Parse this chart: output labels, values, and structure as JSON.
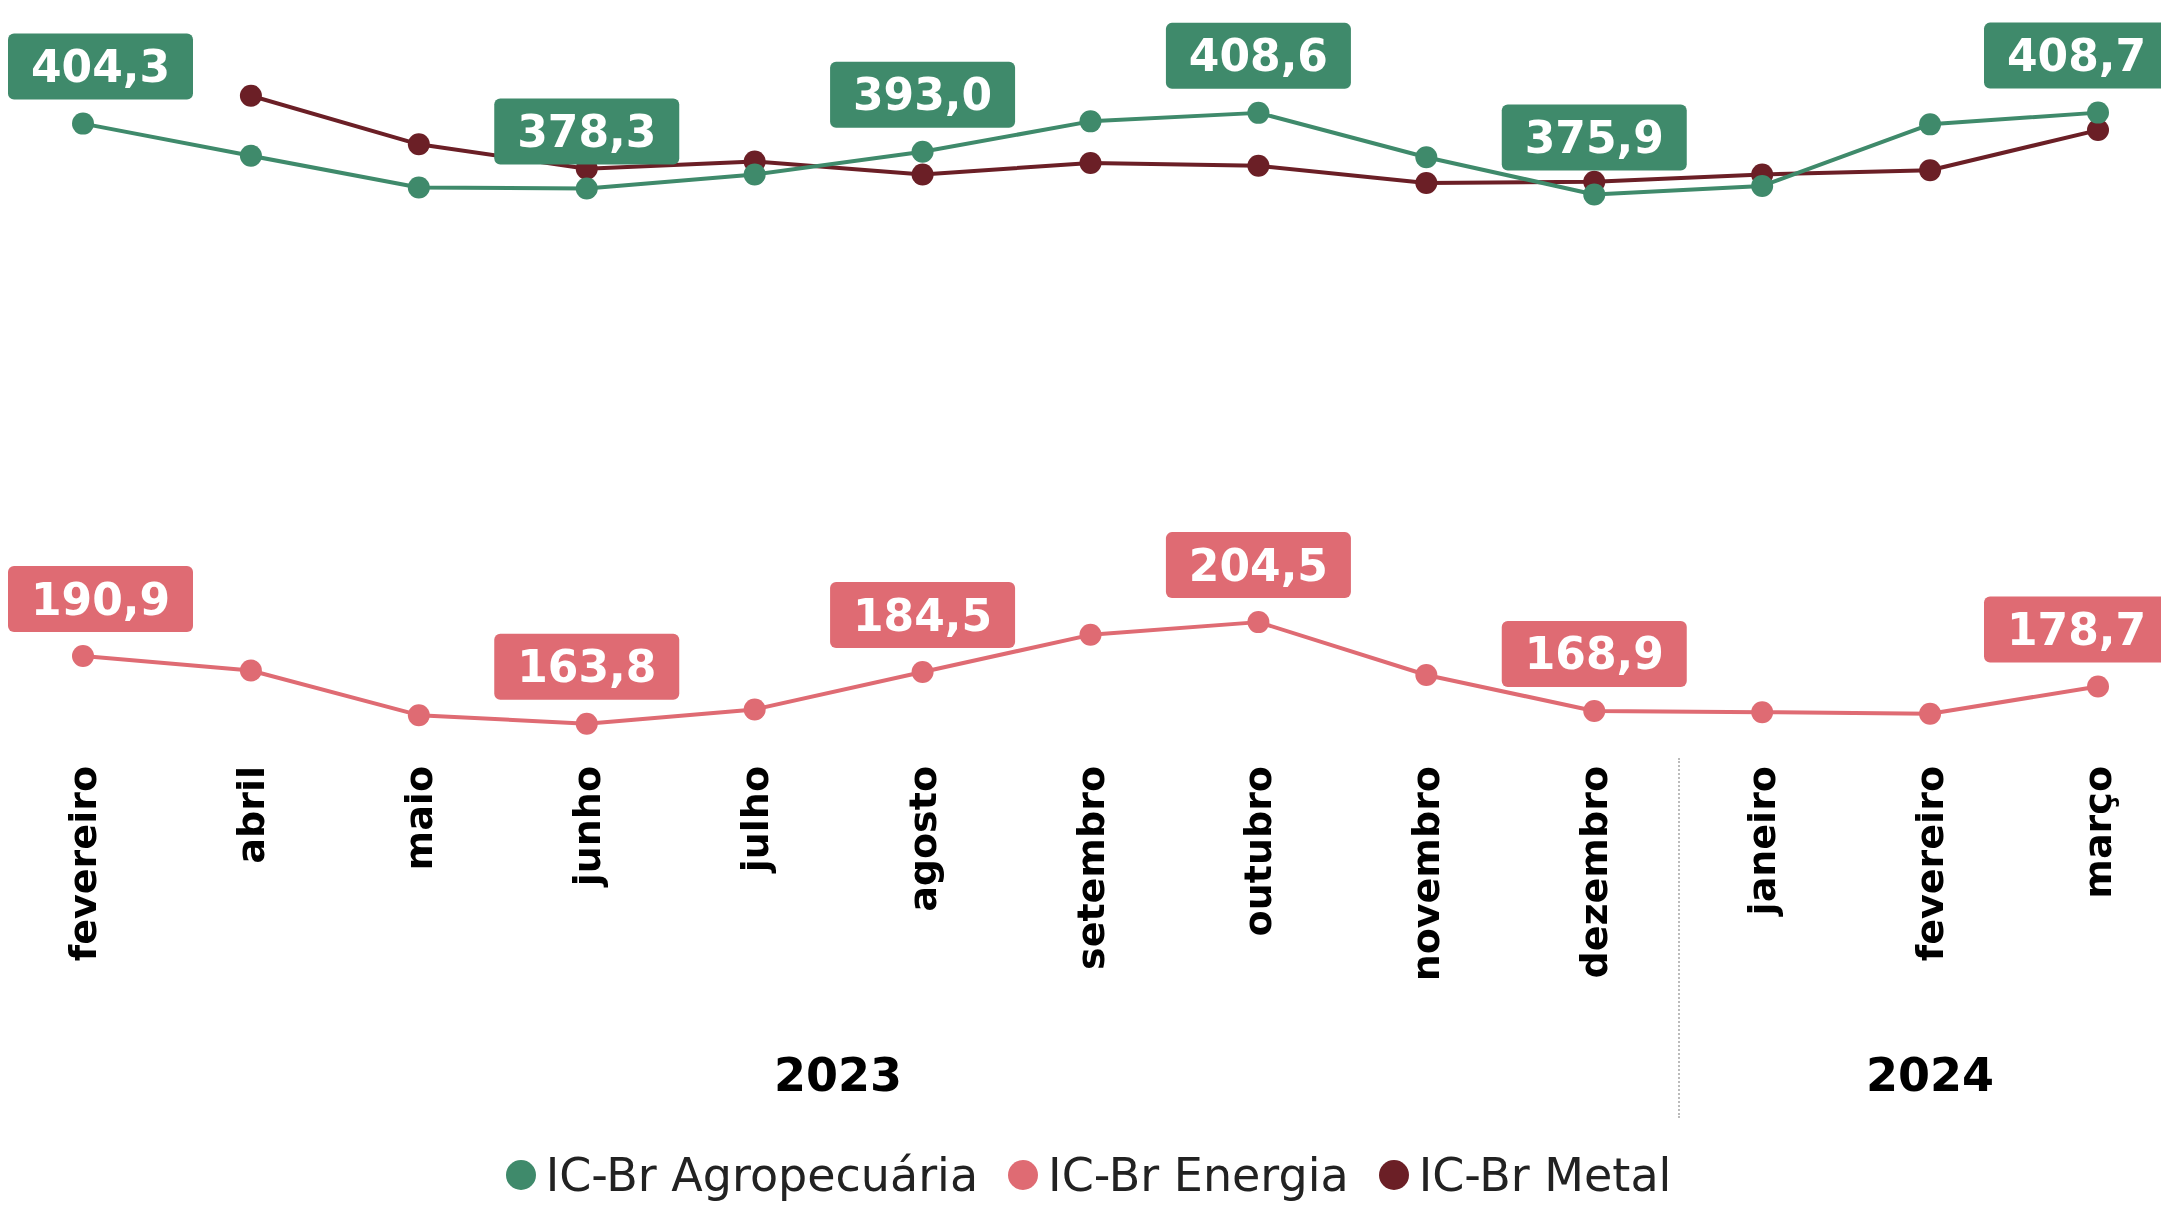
{
  "chart_data": {
    "type": "line",
    "categories": [
      "fevereiro",
      "abril",
      "maio",
      "junho",
      "julho",
      "agosto",
      "setembro",
      "outubro",
      "novembro",
      "dezembro",
      "janeiro",
      "fevereiro",
      "março"
    ],
    "series": [
      {
        "name": "IC-Br Agropecuária",
        "color": "#3f8a6b",
        "values": [
          404.3,
          391.4,
          378.7,
          378.3,
          383.9,
          393.0,
          405.2,
          408.6,
          390.8,
          375.9,
          379.3,
          404.0,
          408.7
        ],
        "value_labels": [
          "404,3",
          null,
          null,
          "378,3",
          null,
          "393,0",
          null,
          "408,6",
          null,
          "375,9",
          null,
          null,
          "408,7"
        ]
      },
      {
        "name": "IC-Br Energia",
        "color": "#df6b73",
        "values": [
          190.9,
          185.1,
          167.2,
          163.8,
          169.5,
          184.5,
          199.4,
          204.5,
          183.3,
          168.9,
          168.4,
          167.8,
          178.7
        ],
        "value_labels": [
          "190,9",
          null,
          null,
          "163,8",
          null,
          "184,5",
          null,
          "204,5",
          null,
          "168,9",
          null,
          null,
          "178,7"
        ]
      },
      {
        "name": "IC-Br Metal",
        "color": "#6b1f26",
        "values": [
          null,
          415.5,
          396.0,
          386.2,
          389.1,
          383.9,
          388.5,
          387.4,
          380.5,
          381.0,
          383.9,
          385.6,
          401.7
        ]
      }
    ],
    "tick_labels": "x",
    "legend": "bottom",
    "marker": "circle",
    "line_style": "solid",
    "annotations": [
      "2023",
      "2024"
    ]
  }
}
